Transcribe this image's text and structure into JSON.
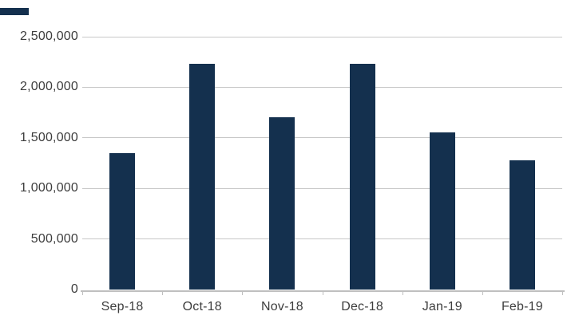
{
  "chart_data": {
    "type": "bar",
    "title": "",
    "xlabel": "",
    "ylabel": "",
    "categories": [
      "Sep-18",
      "Oct-18",
      "Nov-18",
      "Dec-18",
      "Jan-19",
      "Feb-19"
    ],
    "values": [
      1350000,
      2230000,
      1700000,
      2230000,
      1550000,
      1280000
    ],
    "ylim": [
      0,
      2500000
    ],
    "ytick_interval": 500000,
    "ytick_values": [
      0,
      500000,
      1000000,
      1500000,
      2000000,
      2500000
    ],
    "ytick_labels": [
      "0",
      "500,000",
      "1,000,000",
      "1,500,000",
      "2,000,000",
      "2,500,000"
    ],
    "grid": true,
    "legend": false
  },
  "colors": {
    "bar": "#14304e",
    "gridline": "#c7c7c7",
    "axis": "#bfbfbf",
    "tick": "#bfbfbf",
    "text": "#3d3d3d",
    "background": "#ffffff",
    "brand_mark": "#14304e"
  }
}
